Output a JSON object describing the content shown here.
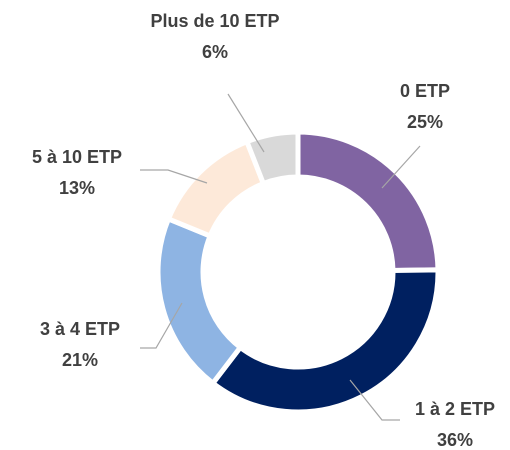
{
  "chart_data": {
    "type": "donut",
    "categories": [
      "0 ETP",
      "1 à 2 ETP",
      "3 à 4 ETP",
      "5 à 10 ETP",
      "Plus de 10 ETP"
    ],
    "values": [
      25,
      36,
      21,
      13,
      6
    ],
    "value_labels": [
      "25%",
      "36%",
      "21%",
      "13%",
      "6%"
    ],
    "colors": [
      "#8064a2",
      "#002060",
      "#8eb4e3",
      "#fde9d9",
      "#d9d9d9"
    ]
  }
}
